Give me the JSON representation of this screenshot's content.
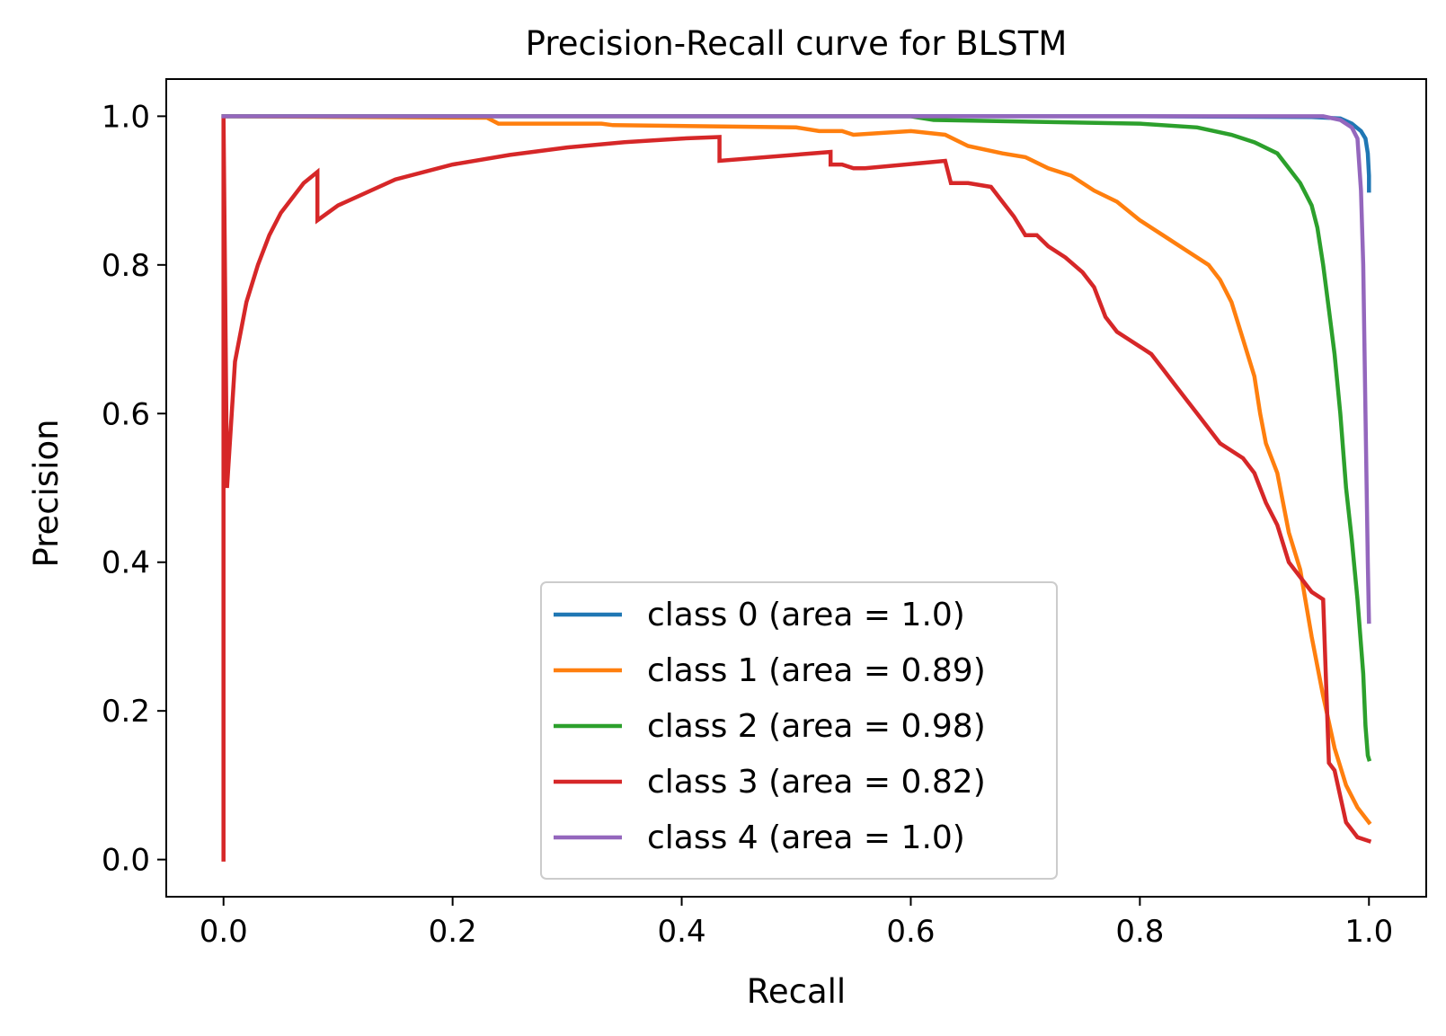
{
  "chart_data": {
    "type": "line",
    "title": "Precision-Recall curve for BLSTM",
    "xlabel": "Recall",
    "ylabel": "Precision",
    "xlim": [
      -0.05,
      1.05
    ],
    "ylim": [
      -0.05,
      1.05
    ],
    "xticks": [
      0.0,
      0.2,
      0.4,
      0.6,
      0.8,
      1.0
    ],
    "yticks": [
      0.0,
      0.2,
      0.4,
      0.6,
      0.8,
      1.0
    ],
    "xtick_labels": [
      "0.0",
      "0.2",
      "0.4",
      "0.6",
      "0.8",
      "1.0"
    ],
    "ytick_labels": [
      "0.0",
      "0.2",
      "0.4",
      "0.6",
      "0.8",
      "1.0"
    ],
    "grid": false,
    "legend_position": "lower-center",
    "series": [
      {
        "name": "class 0 (area = 1.0)",
        "color": "#1f77b4",
        "x": [
          0.0,
          0.2,
          0.5,
          0.8,
          0.95,
          0.975,
          0.985,
          0.993,
          0.997,
          0.999,
          1.0,
          1.0
        ],
        "y": [
          1.0,
          1.0,
          1.0,
          1.0,
          0.999,
          0.997,
          0.99,
          0.98,
          0.97,
          0.95,
          0.92,
          0.9
        ]
      },
      {
        "name": "class 1 (area = 0.89)",
        "color": "#ff7f0e",
        "x": [
          0.0,
          0.23,
          0.24,
          0.33,
          0.34,
          0.5,
          0.52,
          0.54,
          0.55,
          0.6,
          0.63,
          0.65,
          0.68,
          0.7,
          0.72,
          0.74,
          0.76,
          0.78,
          0.8,
          0.82,
          0.84,
          0.86,
          0.87,
          0.88,
          0.89,
          0.9,
          0.905,
          0.91,
          0.92,
          0.925,
          0.93,
          0.94,
          0.95,
          0.96,
          0.97,
          0.98,
          0.99,
          1.0
        ],
        "y": [
          1.0,
          0.998,
          0.99,
          0.99,
          0.988,
          0.985,
          0.98,
          0.98,
          0.975,
          0.98,
          0.975,
          0.96,
          0.95,
          0.945,
          0.93,
          0.92,
          0.9,
          0.885,
          0.86,
          0.84,
          0.82,
          0.8,
          0.78,
          0.75,
          0.7,
          0.65,
          0.6,
          0.56,
          0.52,
          0.48,
          0.44,
          0.39,
          0.3,
          0.22,
          0.15,
          0.1,
          0.07,
          0.05
        ]
      },
      {
        "name": "class 2 (area = 0.98)",
        "color": "#2ca02c",
        "x": [
          0.0,
          0.6,
          0.62,
          0.8,
          0.85,
          0.88,
          0.9,
          0.92,
          0.93,
          0.94,
          0.95,
          0.955,
          0.96,
          0.965,
          0.97,
          0.975,
          0.98,
          0.985,
          0.99,
          0.995,
          0.997,
          0.999,
          1.0
        ],
        "y": [
          1.0,
          1.0,
          0.995,
          0.99,
          0.985,
          0.975,
          0.965,
          0.95,
          0.93,
          0.91,
          0.88,
          0.85,
          0.8,
          0.74,
          0.68,
          0.6,
          0.5,
          0.43,
          0.35,
          0.25,
          0.18,
          0.14,
          0.135
        ]
      },
      {
        "name": "class 3 (area = 0.82)",
        "color": "#d62728",
        "x": [
          0.0,
          0.0,
          0.003,
          0.01,
          0.02,
          0.03,
          0.04,
          0.05,
          0.06,
          0.07,
          0.082,
          0.082,
          0.1,
          0.15,
          0.2,
          0.25,
          0.3,
          0.35,
          0.4,
          0.433,
          0.433,
          0.53,
          0.53,
          0.54,
          0.55,
          0.56,
          0.63,
          0.635,
          0.65,
          0.67,
          0.68,
          0.69,
          0.7,
          0.71,
          0.72,
          0.735,
          0.75,
          0.76,
          0.77,
          0.78,
          0.79,
          0.8,
          0.81,
          0.82,
          0.83,
          0.84,
          0.85,
          0.86,
          0.87,
          0.88,
          0.89,
          0.9,
          0.91,
          0.92,
          0.93,
          0.94,
          0.95,
          0.96,
          0.965,
          0.97,
          0.98,
          0.99,
          1.0
        ],
        "y": [
          0.0,
          1.0,
          0.5,
          0.67,
          0.75,
          0.8,
          0.84,
          0.87,
          0.89,
          0.91,
          0.925,
          0.86,
          0.88,
          0.915,
          0.935,
          0.948,
          0.958,
          0.965,
          0.97,
          0.972,
          0.94,
          0.952,
          0.935,
          0.935,
          0.93,
          0.93,
          0.94,
          0.91,
          0.91,
          0.905,
          0.885,
          0.865,
          0.84,
          0.84,
          0.825,
          0.81,
          0.79,
          0.77,
          0.73,
          0.71,
          0.7,
          0.69,
          0.68,
          0.66,
          0.64,
          0.62,
          0.6,
          0.58,
          0.56,
          0.55,
          0.54,
          0.52,
          0.48,
          0.45,
          0.4,
          0.38,
          0.36,
          0.35,
          0.13,
          0.12,
          0.05,
          0.03,
          0.025
        ]
      },
      {
        "name": "class 4 (area = 1.0)",
        "color": "#9467bd",
        "x": [
          0.0,
          0.5,
          0.9,
          0.96,
          0.975,
          0.985,
          0.99,
          0.993,
          0.995,
          0.997,
          0.998,
          0.999,
          1.0
        ],
        "y": [
          1.0,
          1.0,
          1.0,
          1.0,
          0.995,
          0.985,
          0.97,
          0.9,
          0.8,
          0.6,
          0.5,
          0.4,
          0.32
        ]
      }
    ]
  }
}
